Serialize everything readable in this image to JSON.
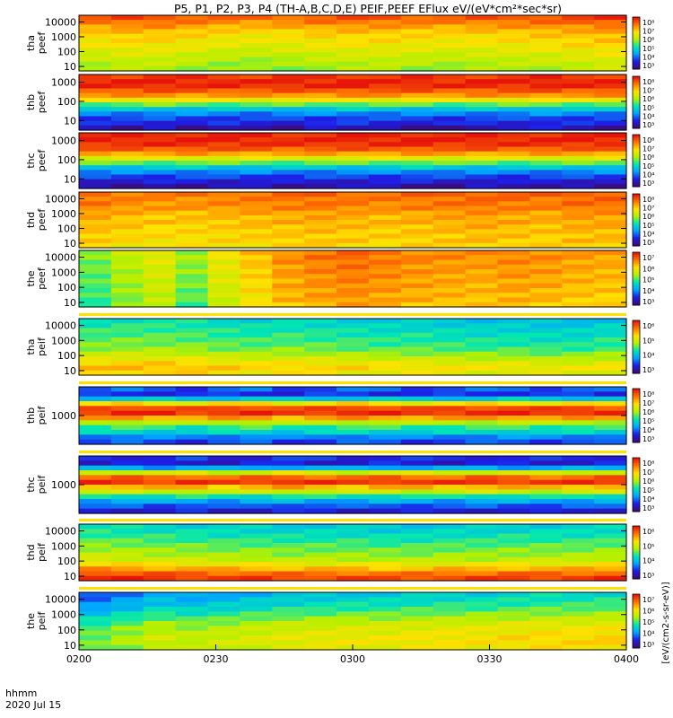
{
  "chart_data": {
    "type": "heatmap",
    "title": "P5, P1, P2, P3, P4 (TH-A,B,C,D,E) PEIF,PEEF EFlux eV/(eV*cm²*sec*sr)",
    "x_tick_labels": [
      "0200",
      "0230",
      "0300",
      "0330",
      "0400"
    ],
    "x_range_minutes": [
      0,
      120
    ],
    "x_tick_minutes": [
      0,
      30,
      60,
      90,
      120
    ],
    "time_header": "hhmm",
    "date_label": "2020 Jul 15",
    "colorbar_label": "[eV/(cm2-s-sr-eV)]",
    "colormap": [
      "#3c0a78",
      "#1e1ee6",
      "#00a5ff",
      "#00e6b4",
      "#b4f000",
      "#ffe100",
      "#ff7800",
      "#e6140a"
    ],
    "time_bins": 17,
    "energy_bins": 12,
    "panels": [
      {
        "probe": "tha",
        "species": "peef",
        "label": [
          "tha",
          "peef"
        ],
        "y_ticks": [
          "10000",
          "1000",
          "100",
          "10"
        ],
        "y_log_range": [
          0.7,
          4.45
        ],
        "cbar_ticks": [
          "10⁸",
          "10⁷",
          "10⁶",
          "10⁵",
          "10⁴",
          "10³"
        ],
        "profile": [
          0.9,
          0.85,
          0.8,
          0.75,
          0.72,
          0.7,
          0.68,
          0.65,
          0.62,
          0.6,
          0.58,
          0.56
        ],
        "trend": [
          0,
          0.02,
          0.02,
          0,
          -0.02,
          -0.03,
          -0.02,
          0,
          0.01,
          0.01,
          0,
          -0.01,
          0,
          0.01,
          0.02,
          0.03,
          0.05
        ]
      },
      {
        "probe": "thb",
        "species": "peef",
        "label": [
          "thb",
          "peef"
        ],
        "y_ticks": [
          "1000",
          "100",
          "10"
        ],
        "y_log_range": [
          0.5,
          3.4
        ],
        "cbar_ticks": [
          "10⁸",
          "10⁷",
          "10⁶",
          "10⁵",
          "10⁴",
          "10³"
        ],
        "profile": [
          0.95,
          0.98,
          0.97,
          0.9,
          0.82,
          0.68,
          0.5,
          0.35,
          0.25,
          0.18,
          0.14,
          0.1
        ],
        "trend": [
          0,
          0,
          0.01,
          0,
          0,
          -0.01,
          0,
          0,
          0.01,
          0,
          0,
          -0.01,
          0,
          0,
          0.01,
          0,
          0
        ]
      },
      {
        "probe": "thc",
        "species": "peef",
        "label": [
          "thc",
          "peef"
        ],
        "y_ticks": [
          "1000",
          "100",
          "10"
        ],
        "y_log_range": [
          0.5,
          3.4
        ],
        "cbar_ticks": [
          "10⁸",
          "10⁷",
          "10⁶",
          "10⁵",
          "10⁴",
          "10³"
        ],
        "profile": [
          0.97,
          0.98,
          0.96,
          0.9,
          0.8,
          0.66,
          0.5,
          0.36,
          0.25,
          0.18,
          0.12,
          0.08
        ],
        "trend": [
          0,
          0,
          0,
          0.01,
          0,
          0,
          -0.01,
          0,
          0,
          0,
          0.01,
          0,
          0,
          -0.01,
          0,
          0,
          0
        ]
      },
      {
        "probe": "thd",
        "species": "peef",
        "label": [
          "thd",
          "peef"
        ],
        "y_ticks": [
          "10000",
          "1000",
          "100",
          "10"
        ],
        "y_log_range": [
          0.7,
          4.45
        ],
        "cbar_ticks": [
          "10⁸",
          "10⁷",
          "10⁶",
          "10⁵",
          "10⁴",
          "10³"
        ],
        "profile": [
          0.88,
          0.86,
          0.85,
          0.84,
          0.8,
          0.78,
          0.78,
          0.76,
          0.75,
          0.74,
          0.74,
          0.72
        ],
        "trend": [
          0,
          -0.02,
          -0.03,
          -0.03,
          -0.02,
          -0.01,
          0,
          0.01,
          0,
          -0.01,
          0,
          0.01,
          0.02,
          0.01,
          0,
          0.02,
          0.02
        ]
      },
      {
        "probe": "the",
        "species": "peef",
        "label": [
          "the",
          "peef"
        ],
        "y_ticks": [
          "10000",
          "1000",
          "100",
          "10"
        ],
        "y_log_range": [
          0.7,
          4.45
        ],
        "cbar_ticks": [
          "10⁷",
          "10⁶",
          "10⁵",
          "10⁴",
          "10³"
        ],
        "profile": [
          0.78,
          0.78,
          0.77,
          0.76,
          0.76,
          0.75,
          0.74,
          0.74,
          0.73,
          0.72,
          0.72,
          0.7
        ],
        "trend": [
          -0.25,
          -0.18,
          -0.12,
          -0.22,
          -0.1,
          -0.02,
          0.05,
          0.08,
          0.1,
          0.08,
          0.06,
          0.05,
          0.04,
          0.06,
          0.05,
          0.03,
          0.02
        ]
      },
      {
        "probe": "tha",
        "species": "peif",
        "label": [
          "tha",
          "peif"
        ],
        "y_ticks": [
          "10000",
          "1000",
          "100",
          "10"
        ],
        "y_log_range": [
          0.7,
          4.45
        ],
        "cbar_ticks": [
          "10⁶",
          "10⁵",
          "10⁴",
          "10³"
        ],
        "profile": [
          0.42,
          0.44,
          0.46,
          0.48,
          0.5,
          0.52,
          0.55,
          0.6,
          0.66,
          0.72,
          0.76,
          0.72
        ],
        "trend": [
          0,
          0.01,
          0.01,
          0,
          -0.02,
          -0.03,
          -0.02,
          -0.03,
          -0.04,
          -0.05,
          -0.05,
          -0.06,
          -0.07,
          -0.07,
          -0.08,
          -0.08,
          -0.06
        ]
      },
      {
        "probe": "thb",
        "species": "peif",
        "label": [
          "thb",
          "peif"
        ],
        "y_ticks": [
          "1000"
        ],
        "y_log_range": [
          2.3,
          3.7
        ],
        "cbar_ticks": [
          "10⁸",
          "10⁷",
          "10⁶",
          "10⁵",
          "10⁴",
          "10³"
        ],
        "profile": [
          0.2,
          0.15,
          0.35,
          0.7,
          0.92,
          0.96,
          0.8,
          0.58,
          0.45,
          0.38,
          0.25,
          0.18
        ],
        "trend": [
          0,
          0.02,
          0,
          -0.02,
          0.01,
          0.02,
          -0.02,
          0,
          0.02,
          0.01,
          -0.01,
          0,
          0.01,
          0.02,
          0,
          0.01,
          0
        ]
      },
      {
        "probe": "thc",
        "species": "peif",
        "label": [
          "thc",
          "peif"
        ],
        "y_ticks": [
          "1000"
        ],
        "y_log_range": [
          2.3,
          3.7
        ],
        "cbar_ticks": [
          "10⁸",
          "10⁷",
          "10⁶",
          "10⁵",
          "10⁴",
          "10³"
        ],
        "profile": [
          0.15,
          0.12,
          0.3,
          0.62,
          0.88,
          0.95,
          0.78,
          0.6,
          0.42,
          0.3,
          0.2,
          0.12
        ],
        "trend": [
          0,
          0.01,
          -0.01,
          0.01,
          -0.02,
          0,
          0.02,
          0,
          -0.01,
          0.01,
          0,
          -0.01,
          0.01,
          0,
          -0.01,
          0,
          0.01
        ]
      },
      {
        "probe": "thd",
        "species": "peif",
        "label": [
          "thd",
          "peif"
        ],
        "y_ticks": [
          "10000",
          "1000",
          "100",
          "10"
        ],
        "y_log_range": [
          0.7,
          4.45
        ],
        "cbar_ticks": [
          "10⁶",
          "10⁵",
          "10⁴",
          "10³"
        ],
        "profile": [
          0.4,
          0.42,
          0.45,
          0.48,
          0.52,
          0.55,
          0.58,
          0.62,
          0.7,
          0.8,
          0.9,
          0.96
        ],
        "trend": [
          0.02,
          0.01,
          0,
          -0.01,
          -0.02,
          -0.02,
          -0.03,
          -0.03,
          -0.03,
          -0.04,
          -0.04,
          -0.03,
          -0.03,
          -0.02,
          -0.02,
          -0.02,
          -0.01
        ]
      },
      {
        "probe": "the",
        "species": "peif",
        "label": [
          "the",
          "peif"
        ],
        "y_ticks": [
          "10000",
          "1000",
          "100",
          "10"
        ],
        "y_log_range": [
          0.7,
          4.45
        ],
        "cbar_ticks": [
          "10⁷",
          "10⁶",
          "10⁵",
          "10⁴",
          "10³"
        ],
        "profile": [
          0.3,
          0.33,
          0.36,
          0.4,
          0.45,
          0.5,
          0.55,
          0.58,
          0.6,
          0.62,
          0.62,
          0.6
        ],
        "trend": [
          -0.1,
          -0.05,
          0,
          -0.02,
          0,
          0.02,
          0.04,
          0.05,
          0.06,
          0.06,
          0.07,
          0.08,
          0.08,
          0.09,
          0.1,
          0.1,
          0.11
        ]
      }
    ]
  }
}
